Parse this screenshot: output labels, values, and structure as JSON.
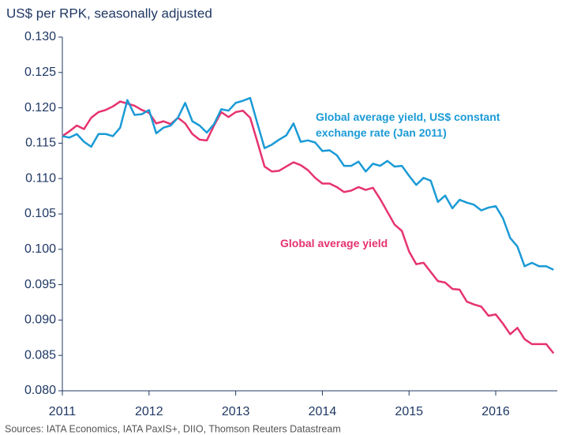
{
  "chart_data": {
    "type": "line",
    "axis_title": "US$ per RPK, seasonally adjusted",
    "source": "Sources: IATA Economics, IATA PaxIS+, DIIO, Thomson Reuters Datastream",
    "x": [
      2011,
      2011.083,
      2011.167,
      2011.25,
      2011.333,
      2011.417,
      2011.5,
      2011.583,
      2011.667,
      2011.75,
      2011.833,
      2011.917,
      2012,
      2012.083,
      2012.167,
      2012.25,
      2012.333,
      2012.417,
      2012.5,
      2012.583,
      2012.667,
      2012.75,
      2012.833,
      2012.917,
      2013,
      2013.083,
      2013.167,
      2013.25,
      2013.333,
      2013.417,
      2013.5,
      2013.583,
      2013.667,
      2013.75,
      2013.833,
      2013.917,
      2014,
      2014.083,
      2014.167,
      2014.25,
      2014.333,
      2014.417,
      2014.5,
      2014.583,
      2014.667,
      2014.75,
      2014.833,
      2014.917,
      2015,
      2015.083,
      2015.167,
      2015.25,
      2015.333,
      2015.417,
      2015.5,
      2015.583,
      2015.667,
      2015.75,
      2015.833,
      2015.917,
      2016,
      2016.083,
      2016.167,
      2016.25,
      2016.333,
      2016.417,
      2016.5,
      2016.583,
      2016.667
    ],
    "series": [
      {
        "name": "Global average yield, US$ constant exchange rate (Jan 2011)",
        "color": "#1a9ad6",
        "values": [
          0.116,
          0.1158,
          0.1163,
          0.1152,
          0.1145,
          0.1163,
          0.1163,
          0.116,
          0.1172,
          0.1211,
          0.119,
          0.1191,
          0.1197,
          0.1164,
          0.1172,
          0.1175,
          0.1186,
          0.1207,
          0.1181,
          0.1175,
          0.1165,
          0.1177,
          0.1198,
          0.1196,
          0.1207,
          0.121,
          0.1214,
          0.1178,
          0.1143,
          0.1148,
          0.1155,
          0.1161,
          0.1178,
          0.1152,
          0.1154,
          0.1151,
          0.1139,
          0.114,
          0.1133,
          0.1118,
          0.1118,
          0.1124,
          0.111,
          0.1121,
          0.1118,
          0.1125,
          0.1117,
          0.1118,
          0.1104,
          0.1091,
          0.1101,
          0.1097,
          0.1067,
          0.1076,
          0.1058,
          0.107,
          0.1066,
          0.1063,
          0.1055,
          0.1059,
          0.1061,
          0.1044,
          0.1016,
          0.1004,
          0.0976,
          0.0981,
          0.0976,
          0.0976,
          0.0971
        ]
      },
      {
        "name": "Global average yield",
        "color": "#e6336e",
        "values": [
          0.116,
          0.1167,
          0.1175,
          0.117,
          0.1186,
          0.1194,
          0.1197,
          0.1202,
          0.1209,
          0.1206,
          0.1203,
          0.1197,
          0.1193,
          0.1178,
          0.1181,
          0.1177,
          0.1186,
          0.1178,
          0.1163,
          0.1155,
          0.1154,
          0.1175,
          0.1194,
          0.1187,
          0.1194,
          0.1196,
          0.1186,
          0.1152,
          0.1117,
          0.111,
          0.1111,
          0.1117,
          0.1123,
          0.1119,
          0.1112,
          0.1101,
          0.1093,
          0.1093,
          0.1088,
          0.1081,
          0.1083,
          0.1088,
          0.1084,
          0.1087,
          0.1071,
          0.1053,
          0.1035,
          0.1026,
          0.0997,
          0.0979,
          0.0981,
          0.0968,
          0.0955,
          0.0953,
          0.0944,
          0.0943,
          0.0926,
          0.0922,
          0.0919,
          0.0906,
          0.0908,
          0.0895,
          0.088,
          0.0889,
          0.0873,
          0.0866,
          0.0866,
          0.0866,
          0.0853
        ]
      }
    ],
    "xlim": [
      2011,
      2016.71
    ],
    "xticks": [
      2011,
      2012,
      2013,
      2014,
      2015,
      2016
    ],
    "ylim": [
      0.08,
      0.13
    ],
    "yticks": [
      {
        "value": 0.08,
        "label": "0.080"
      },
      {
        "value": 0.085,
        "label": "0.085"
      },
      {
        "value": 0.09,
        "label": "0.090"
      },
      {
        "value": 0.095,
        "label": "0.095"
      },
      {
        "value": 0.1,
        "label": "0.100"
      },
      {
        "value": 0.105,
        "label": "0.105"
      },
      {
        "value": 0.11,
        "label": "0.110"
      },
      {
        "value": 0.115,
        "label": "0.115"
      },
      {
        "value": 0.12,
        "label": "0.120"
      },
      {
        "value": 0.125,
        "label": "0.125"
      },
      {
        "value": 0.13,
        "label": "0.130"
      }
    ],
    "grid": false
  }
}
